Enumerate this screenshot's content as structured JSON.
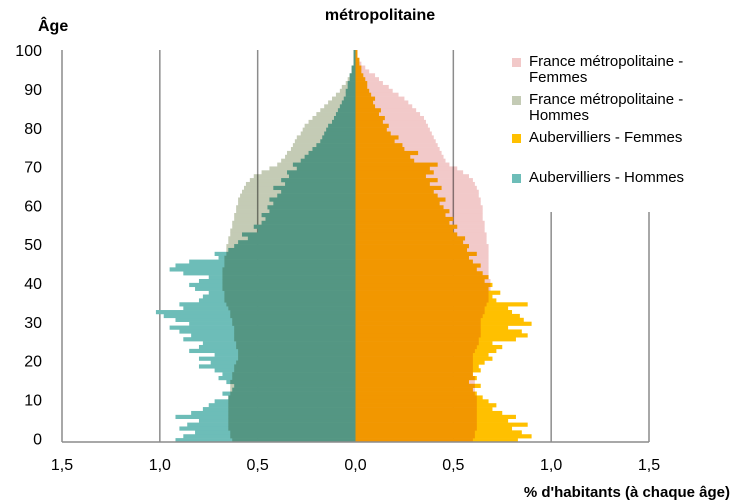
{
  "chart_data": {
    "type": "pyramid",
    "title": "métropolitaine",
    "y_label": "Âge",
    "x_label": "% d'habitants (à chaque âge)",
    "categories": [
      0,
      1,
      2,
      3,
      4,
      5,
      6,
      7,
      8,
      9,
      10,
      11,
      12,
      13,
      14,
      15,
      16,
      17,
      18,
      19,
      20,
      21,
      22,
      23,
      24,
      25,
      26,
      27,
      28,
      29,
      30,
      31,
      32,
      33,
      34,
      35,
      36,
      37,
      38,
      39,
      40,
      41,
      42,
      43,
      44,
      45,
      46,
      47,
      48,
      49,
      50,
      51,
      52,
      53,
      54,
      55,
      56,
      57,
      58,
      59,
      60,
      61,
      62,
      63,
      64,
      65,
      66,
      67,
      68,
      69,
      70,
      71,
      72,
      73,
      74,
      75,
      76,
      77,
      78,
      79,
      80,
      81,
      82,
      83,
      84,
      85,
      86,
      87,
      88,
      89,
      90,
      91,
      92,
      93,
      94,
      95,
      96,
      97,
      98,
      99,
      100
    ],
    "xlim": [
      -1.5,
      1.5
    ],
    "ylim": [
      -0.5,
      100.5
    ],
    "xticks": [
      {
        "value": -1.5,
        "label": "1,5"
      },
      {
        "value": -1.0,
        "label": "1,0"
      },
      {
        "value": -0.5,
        "label": "0,5"
      },
      {
        "value": 0,
        "label": "0,0"
      },
      {
        "value": 0.5,
        "label": "0,5"
      },
      {
        "value": 1.0,
        "label": "1,0"
      },
      {
        "value": 1.5,
        "label": "1,5"
      }
    ],
    "yticks": [
      0,
      10,
      20,
      30,
      40,
      50,
      60,
      70,
      80,
      90,
      100
    ],
    "grid": true,
    "legend": "top-right",
    "series": [
      {
        "name": "France métropolitaine - Femmes",
        "color": "#f2c9c9",
        "overlay": true,
        "values": [
          0.6,
          0.61,
          0.61,
          0.62,
          0.62,
          0.62,
          0.62,
          0.62,
          0.62,
          0.62,
          0.62,
          0.62,
          0.61,
          0.61,
          0.61,
          0.61,
          0.61,
          0.6,
          0.6,
          0.6,
          0.6,
          0.6,
          0.6,
          0.61,
          0.62,
          0.63,
          0.63,
          0.64,
          0.64,
          0.64,
          0.64,
          0.64,
          0.65,
          0.66,
          0.66,
          0.67,
          0.68,
          0.68,
          0.68,
          0.69,
          0.69,
          0.69,
          0.68,
          0.68,
          0.68,
          0.68,
          0.68,
          0.68,
          0.68,
          0.68,
          0.68,
          0.67,
          0.67,
          0.67,
          0.66,
          0.66,
          0.66,
          0.65,
          0.65,
          0.65,
          0.65,
          0.64,
          0.64,
          0.63,
          0.63,
          0.62,
          0.61,
          0.6,
          0.58,
          0.55,
          0.52,
          0.48,
          0.46,
          0.45,
          0.44,
          0.43,
          0.42,
          0.41,
          0.4,
          0.39,
          0.38,
          0.37,
          0.36,
          0.35,
          0.33,
          0.31,
          0.29,
          0.27,
          0.25,
          0.22,
          0.19,
          0.17,
          0.14,
          0.12,
          0.1,
          0.07,
          0.05,
          0.03,
          0.02,
          0.01,
          0.01
        ]
      },
      {
        "name": "France métropolitaine - Hommes",
        "color": "#c4cbb5",
        "overlay": true,
        "values": [
          -0.63,
          -0.64,
          -0.64,
          -0.65,
          -0.65,
          -0.65,
          -0.65,
          -0.65,
          -0.65,
          -0.65,
          -0.65,
          -0.65,
          -0.64,
          -0.64,
          -0.64,
          -0.64,
          -0.63,
          -0.63,
          -0.62,
          -0.62,
          -0.61,
          -0.6,
          -0.6,
          -0.6,
          -0.61,
          -0.61,
          -0.62,
          -0.62,
          -0.62,
          -0.62,
          -0.63,
          -0.63,
          -0.64,
          -0.64,
          -0.65,
          -0.66,
          -0.67,
          -0.67,
          -0.67,
          -0.68,
          -0.68,
          -0.68,
          -0.68,
          -0.68,
          -0.68,
          -0.67,
          -0.67,
          -0.67,
          -0.66,
          -0.66,
          -0.66,
          -0.65,
          -0.65,
          -0.64,
          -0.64,
          -0.63,
          -0.63,
          -0.62,
          -0.62,
          -0.61,
          -0.61,
          -0.6,
          -0.6,
          -0.59,
          -0.58,
          -0.57,
          -0.56,
          -0.54,
          -0.52,
          -0.48,
          -0.44,
          -0.4,
          -0.38,
          -0.36,
          -0.35,
          -0.33,
          -0.32,
          -0.31,
          -0.3,
          -0.28,
          -0.27,
          -0.26,
          -0.24,
          -0.22,
          -0.2,
          -0.18,
          -0.16,
          -0.14,
          -0.12,
          -0.1,
          -0.08,
          -0.07,
          -0.05,
          -0.04,
          -0.03,
          -0.02,
          -0.02,
          -0.01,
          -0.01,
          -0.01,
          -0.01
        ]
      },
      {
        "name": "Aubervilliers - Femmes",
        "color": "#ffc000",
        "overlay": false,
        "values": [
          0.83,
          0.9,
          0.85,
          0.8,
          0.88,
          0.78,
          0.82,
          0.75,
          0.7,
          0.72,
          0.68,
          0.65,
          0.62,
          0.6,
          0.64,
          0.58,
          0.62,
          0.6,
          0.64,
          0.63,
          0.66,
          0.7,
          0.68,
          0.72,
          0.75,
          0.7,
          0.82,
          0.88,
          0.85,
          0.78,
          0.9,
          0.86,
          0.84,
          0.8,
          0.78,
          0.88,
          0.72,
          0.7,
          0.74,
          0.68,
          0.7,
          0.66,
          0.68,
          0.65,
          0.62,
          0.64,
          0.6,
          0.58,
          0.62,
          0.57,
          0.58,
          0.55,
          0.56,
          0.52,
          0.5,
          0.52,
          0.48,
          0.5,
          0.46,
          0.48,
          0.45,
          0.43,
          0.46,
          0.42,
          0.4,
          0.44,
          0.38,
          0.42,
          0.36,
          0.4,
          0.38,
          0.42,
          0.3,
          0.28,
          0.32,
          0.25,
          0.24,
          0.2,
          0.22,
          0.18,
          0.16,
          0.17,
          0.14,
          0.15,
          0.12,
          0.13,
          0.1,
          0.09,
          0.1,
          0.08,
          0.07,
          0.06,
          0.06,
          0.05,
          0.04,
          0.03,
          0.03,
          0.02,
          0.02,
          0.01,
          0.01
        ]
      },
      {
        "name": "Aubervilliers - Hommes",
        "color": "#6dbdb8",
        "overlay": false,
        "values": [
          -0.92,
          -0.88,
          -0.82,
          -0.9,
          -0.86,
          -0.8,
          -0.92,
          -0.84,
          -0.78,
          -0.75,
          -0.72,
          -0.65,
          -0.68,
          -0.63,
          -0.62,
          -0.66,
          -0.7,
          -0.68,
          -0.72,
          -0.8,
          -0.74,
          -0.8,
          -0.72,
          -0.85,
          -0.8,
          -0.78,
          -0.88,
          -0.84,
          -0.9,
          -0.95,
          -0.85,
          -0.92,
          -0.98,
          -1.02,
          -0.88,
          -0.9,
          -0.8,
          -0.78,
          -0.75,
          -0.82,
          -0.85,
          -0.8,
          -0.75,
          -0.88,
          -0.95,
          -0.92,
          -0.85,
          -0.7,
          -0.72,
          -0.65,
          -0.62,
          -0.6,
          -0.55,
          -0.58,
          -0.5,
          -0.52,
          -0.48,
          -0.46,
          -0.48,
          -0.44,
          -0.45,
          -0.42,
          -0.44,
          -0.4,
          -0.38,
          -0.42,
          -0.36,
          -0.38,
          -0.34,
          -0.35,
          -0.3,
          -0.32,
          -0.28,
          -0.26,
          -0.24,
          -0.22,
          -0.2,
          -0.18,
          -0.17,
          -0.16,
          -0.15,
          -0.14,
          -0.12,
          -0.11,
          -0.1,
          -0.09,
          -0.08,
          -0.07,
          -0.06,
          -0.05,
          -0.05,
          -0.04,
          -0.04,
          -0.03,
          -0.03,
          -0.02,
          -0.02,
          -0.01,
          -0.01,
          -0.01,
          -0.01
        ]
      }
    ]
  }
}
